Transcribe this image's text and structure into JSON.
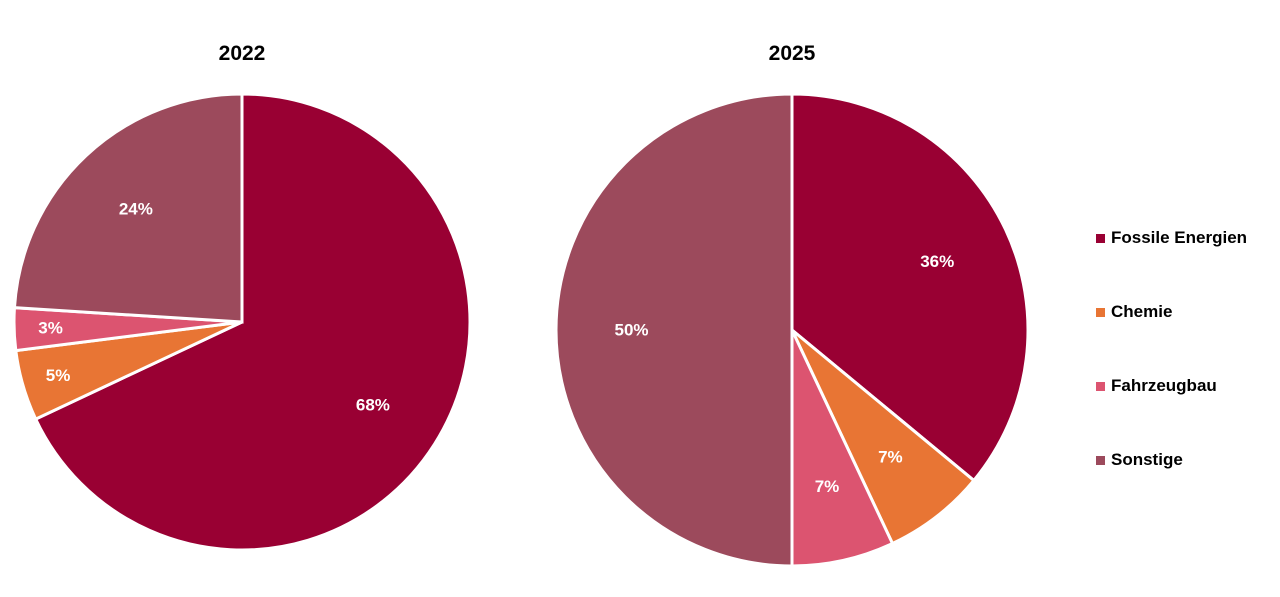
{
  "chart_data": [
    {
      "type": "pie",
      "title": "2022",
      "categories": [
        "Fossile Energien",
        "Chemie",
        "Fahrzeugbau",
        "Sonstige"
      ],
      "values": [
        68,
        5,
        3,
        24
      ],
      "value_labels": [
        "68%",
        "5%",
        "3%",
        "24%"
      ],
      "start_angle_deg": 0,
      "direction": "clockwise"
    },
    {
      "type": "pie",
      "title": "2025",
      "categories": [
        "Fossile Energien",
        "Chemie",
        "Fahrzeugbau",
        "Sonstige"
      ],
      "values": [
        36,
        7,
        7,
        50
      ],
      "value_labels": [
        "36%",
        "7%",
        "7%",
        "50%"
      ],
      "start_angle_deg": 0,
      "direction": "clockwise"
    }
  ],
  "legend": {
    "placement": "right",
    "items": [
      {
        "label": "Fossile Energien",
        "color": "#990033"
      },
      {
        "label": "Chemie",
        "color": "#E87534"
      },
      {
        "label": "Fahrzeugbau",
        "color": "#DC5470"
      },
      {
        "label": "Sonstige",
        "color": "#9C4A5C"
      }
    ]
  }
}
